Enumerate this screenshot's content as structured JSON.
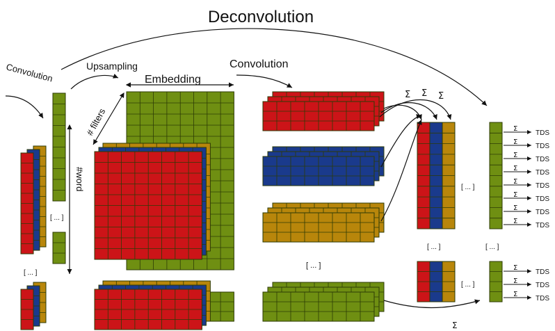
{
  "title": "Deconvolution",
  "labels": {
    "convolution_left": "Convolution",
    "upsampling": "Upsampling",
    "embedding": "Embedding",
    "convolution_right": "Convolution",
    "filters": "# filters",
    "word": "#word",
    "ellipsis": "[ ... ]",
    "sigma": "Σ",
    "tds": "TDS"
  },
  "colors": {
    "red": "#cc1418",
    "blue": "#1a3a8c",
    "gold": "#b8860b",
    "green": "#6f8f12",
    "grid": "#2d3b06"
  }
}
